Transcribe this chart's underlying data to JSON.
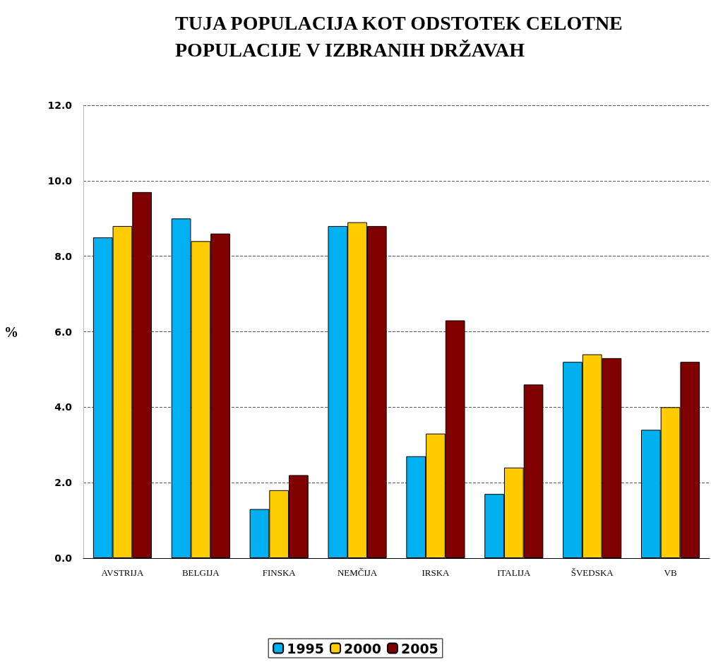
{
  "chart_data": {
    "type": "bar",
    "title": "TUJA POPULACIJA KOT ODSTOTEK CELOTNE\nPOPULACIJE V IZBRANIH DRŽAVAH",
    "ylabel": "%",
    "categories": [
      "AVSTRIJA",
      "BELGIJA",
      "FINSKA",
      "NEMČIJA",
      "IRSKA",
      "ITALIJA",
      "ŠVEDSKA",
      "VB"
    ],
    "series": [
      {
        "name": "1995",
        "color": "#00b0f0",
        "values": [
          8.5,
          9.0,
          1.3,
          8.8,
          2.7,
          1.7,
          5.2,
          3.4
        ]
      },
      {
        "name": "2000",
        "color": "#ffcc00",
        "values": [
          8.8,
          8.4,
          1.8,
          8.9,
          3.3,
          2.4,
          5.4,
          4.0
        ]
      },
      {
        "name": "2005",
        "color": "#800000",
        "values": [
          9.7,
          8.6,
          2.2,
          8.8,
          6.3,
          4.6,
          5.3,
          5.2
        ]
      }
    ],
    "ylim": [
      0,
      12
    ],
    "yticks": [
      {
        "value": 0,
        "label": "0.0"
      },
      {
        "value": 2,
        "label": "2.0"
      },
      {
        "value": 4,
        "label": "4.0"
      },
      {
        "value": 6,
        "label": "6.0"
      },
      {
        "value": 8,
        "label": "8.0"
      },
      {
        "value": 10,
        "label": "10.0"
      },
      {
        "value": 12,
        "label": "12.0"
      }
    ],
    "grid": "y",
    "legend": "bottom"
  }
}
